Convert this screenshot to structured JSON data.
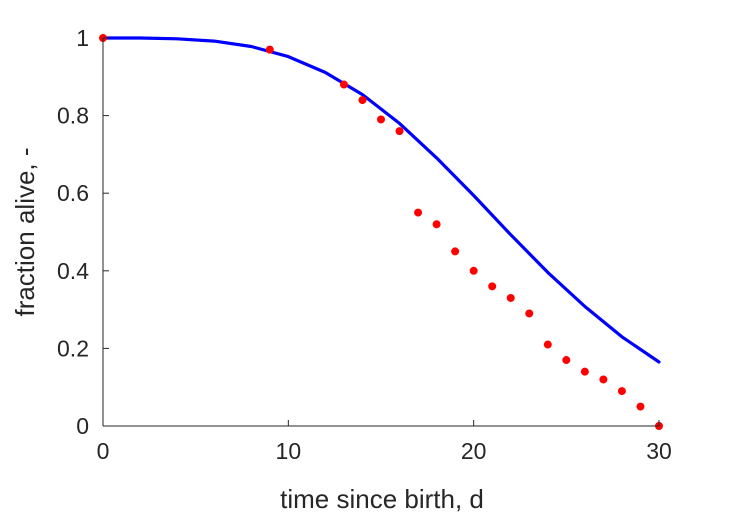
{
  "chart_data": {
    "type": "line",
    "xlabel": "time since birth, d",
    "ylabel": "fraction alive, -",
    "xlim": [
      0,
      30
    ],
    "ylim": [
      0,
      1
    ],
    "xticks": [
      0,
      10,
      20,
      30
    ],
    "xtick_labels": [
      "0",
      "10",
      "20",
      "30"
    ],
    "yticks": [
      0,
      0.2,
      0.4,
      0.6,
      0.8,
      1
    ],
    "ytick_labels": [
      "0",
      "0.2",
      "0.4",
      "0.6",
      "0.8",
      "1"
    ],
    "grid": false,
    "series": [
      {
        "kind": "scatter",
        "color": "#ff0000",
        "x": [
          0,
          9,
          13,
          14,
          15,
          16,
          17,
          18,
          19,
          20,
          21,
          22,
          23,
          24,
          25,
          26,
          27,
          28,
          29,
          30
        ],
        "y": [
          1.0,
          0.97,
          0.88,
          0.84,
          0.79,
          0.76,
          0.55,
          0.52,
          0.45,
          0.4,
          0.36,
          0.33,
          0.29,
          0.21,
          0.17,
          0.14,
          0.12,
          0.09,
          0.05,
          0.0
        ]
      },
      {
        "kind": "line",
        "color": "#0000ff",
        "x": [
          0,
          2,
          4,
          6,
          8,
          10,
          12,
          14,
          16,
          18,
          20,
          22,
          24,
          26,
          28,
          30
        ],
        "y": [
          1.0,
          1.0,
          0.998,
          0.992,
          0.978,
          0.952,
          0.911,
          0.854,
          0.78,
          0.691,
          0.594,
          0.493,
          0.396,
          0.308,
          0.23,
          0.165
        ]
      }
    ]
  }
}
